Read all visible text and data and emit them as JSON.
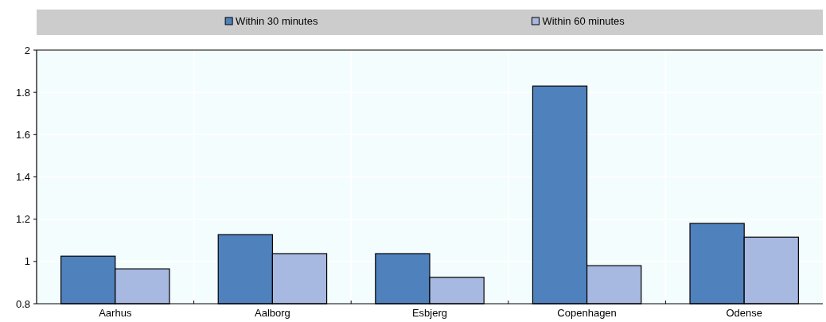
{
  "chart_data": {
    "type": "bar",
    "categories": [
      "Aarhus",
      "Aalborg",
      "Esbjerg",
      "Copenhagen",
      "Odense"
    ],
    "series": [
      {
        "name": "Within 30 minutes",
        "color": "#4f81bd",
        "values": [
          1.025,
          1.127,
          1.037,
          1.83,
          1.18
        ]
      },
      {
        "name": "Within 60 minutes",
        "color": "#a7b9e1",
        "values": [
          0.965,
          1.037,
          0.925,
          0.98,
          1.115
        ]
      }
    ],
    "ylim": [
      0.8,
      2
    ],
    "yticks": [
      0.8,
      1,
      1.2,
      1.4,
      1.6,
      1.8,
      2
    ],
    "grid": true,
    "legend": "top"
  }
}
